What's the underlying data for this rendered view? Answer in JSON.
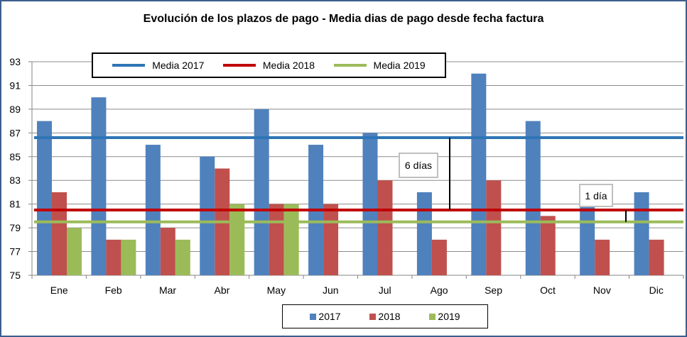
{
  "chart_data": {
    "type": "bar",
    "title": "Evolución de los plazos de pago - Media dias de pago desde fecha factura",
    "xlabel": "",
    "ylabel": "",
    "ylim": [
      75,
      93
    ],
    "yticks": [
      75,
      77,
      79,
      81,
      83,
      85,
      87,
      89,
      91,
      93
    ],
    "grid": true,
    "categories": [
      "Ene",
      "Feb",
      "Mar",
      "Abr",
      "May",
      "Jun",
      "Jul",
      "Ago",
      "Sep",
      "Oct",
      "Nov",
      "Dic"
    ],
    "series": [
      {
        "name": "2017",
        "color": "#4f81bd",
        "values": [
          88,
          90,
          86,
          85,
          89,
          86,
          87,
          82,
          92,
          88,
          81,
          82
        ]
      },
      {
        "name": "2018",
        "color": "#c0504d",
        "values": [
          82,
          78,
          79,
          84,
          81,
          81,
          83,
          78,
          83,
          80,
          78,
          78
        ]
      },
      {
        "name": "2019",
        "color": "#9bbb59",
        "values": [
          79,
          78,
          78,
          81,
          81,
          null,
          null,
          null,
          null,
          null,
          null,
          null
        ]
      }
    ],
    "reference_lines": [
      {
        "name": "Media 2017",
        "color": "#2e75b6",
        "value": 86.6
      },
      {
        "name": "Media 2018",
        "color": "#c00000",
        "value": 80.5
      },
      {
        "name": "Media 2019",
        "color": "#9bbb59",
        "value": 79.5
      }
    ],
    "legend_lines_placement": "top-left",
    "legend_bars_placement": "bottom",
    "annotations": [
      {
        "text": "6 días",
        "from": 86.6,
        "to": 80.5,
        "category": "Ago"
      },
      {
        "text": "1 día",
        "from": 80.5,
        "to": 79.5,
        "category": "Nov"
      }
    ]
  }
}
